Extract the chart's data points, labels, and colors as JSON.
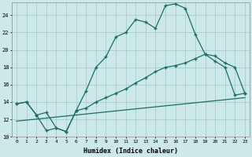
{
  "xlabel": "Humidex (Indice chaleur)",
  "bg_color": "#cce8e8",
  "grid_color": "#aacccc",
  "line_color": "#1a6e64",
  "ylim": [
    10,
    25.5
  ],
  "xlim": [
    -0.5,
    23.5
  ],
  "yticks": [
    10,
    12,
    14,
    16,
    18,
    20,
    22,
    24
  ],
  "xticks": [
    0,
    1,
    2,
    3,
    4,
    5,
    6,
    7,
    8,
    9,
    10,
    11,
    12,
    13,
    14,
    15,
    16,
    17,
    18,
    19,
    20,
    21,
    22,
    23
  ],
  "curve1_x": [
    0,
    1,
    2,
    3,
    4,
    5,
    6,
    7,
    8,
    9,
    10,
    11,
    12,
    13,
    14,
    15,
    16,
    17,
    18,
    19,
    20,
    21,
    22,
    23
  ],
  "curve1_y": [
    13.8,
    14.0,
    12.5,
    10.7,
    11.0,
    10.6,
    13.0,
    15.3,
    18.0,
    19.2,
    21.5,
    22.0,
    23.5,
    23.2,
    22.5,
    25.1,
    25.3,
    24.8,
    21.8,
    19.5,
    18.7,
    18.0,
    14.8,
    15.0
  ],
  "curve2_x": [
    0,
    1,
    2,
    3,
    4,
    5,
    6,
    7,
    8,
    9,
    10,
    11,
    12,
    13,
    14,
    15,
    16,
    17,
    18,
    19,
    20,
    21,
    22,
    23
  ],
  "curve2_y": [
    13.8,
    14.0,
    12.5,
    12.8,
    11.0,
    10.6,
    13.0,
    13.3,
    14.0,
    14.5,
    15.0,
    15.5,
    16.2,
    16.8,
    17.5,
    18.0,
    18.2,
    18.5,
    19.0,
    19.5,
    19.3,
    18.5,
    18.0,
    15.0
  ],
  "curve3_x": [
    0,
    23
  ],
  "curve3_y": [
    11.8,
    14.5
  ]
}
